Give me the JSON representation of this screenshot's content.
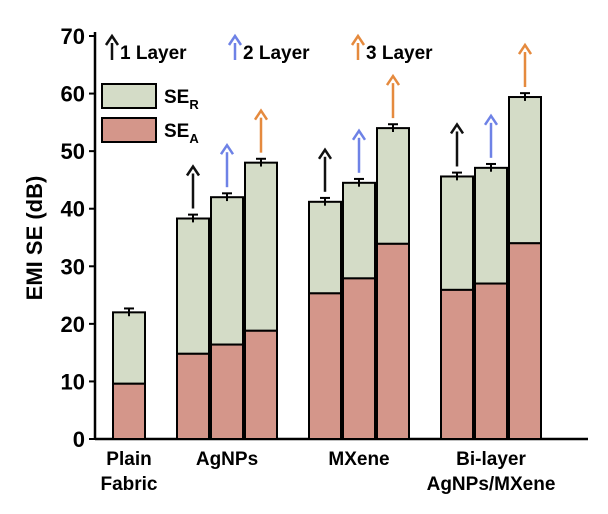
{
  "chart_data": {
    "type": "bar",
    "stacked": true,
    "title": "",
    "xlabel": "",
    "ylabel": "EMI SE (dB)",
    "ylim": [
      0,
      70
    ],
    "yticks": [
      0,
      10,
      20,
      30,
      40,
      50,
      60,
      70
    ],
    "legend_position": "top-left",
    "groups": [
      {
        "label_line1": "Plain",
        "label_line2": "Fabric",
        "bars": [
          {
            "name": "Plain Fabric",
            "layer": 0,
            "se_a": 9.6,
            "se_total": 22.0,
            "error": 0.5
          }
        ]
      },
      {
        "label_line1": "AgNPs",
        "label_line2": "",
        "bars": [
          {
            "name": "AgNPs 1 layer",
            "layer": 1,
            "se_a": 14.8,
            "se_total": 38.3,
            "error": 0.5
          },
          {
            "name": "AgNPs 2 layers",
            "layer": 2,
            "se_a": 16.4,
            "se_total": 42.0,
            "error": 0.5
          },
          {
            "name": "AgNPs 3 layers",
            "layer": 3,
            "se_a": 18.8,
            "se_total": 48.0,
            "error": 0.5
          }
        ]
      },
      {
        "label_line1": "MXene",
        "label_line2": "",
        "bars": [
          {
            "name": "MXene 1 layer",
            "layer": 1,
            "se_a": 25.3,
            "se_total": 41.2,
            "error": 0.5
          },
          {
            "name": "MXene 2 layers",
            "layer": 2,
            "se_a": 27.9,
            "se_total": 44.5,
            "error": 0.5
          },
          {
            "name": "MXene 3 layers",
            "layer": 3,
            "se_a": 33.9,
            "se_total": 54.0,
            "error": 0.5
          }
        ]
      },
      {
        "label_line1": "Bi-layer",
        "label_line2": "AgNPs/MXene",
        "bars": [
          {
            "name": "Bi-layer 1 layer",
            "layer": 1,
            "se_a": 25.9,
            "se_total": 45.6,
            "error": 0.5
          },
          {
            "name": "Bi-layer 2 layers",
            "layer": 2,
            "se_a": 27.0,
            "se_total": 47.1,
            "error": 0.5
          },
          {
            "name": "Bi-layer 3 layers",
            "layer": 3,
            "se_a": 34.0,
            "se_total": 59.4,
            "error": 0.5
          }
        ]
      }
    ],
    "series": [
      {
        "name": "SE",
        "subscript": "R",
        "color": "#d4dcc7"
      },
      {
        "name": "SE",
        "subscript": "A",
        "color": "#d4968a"
      }
    ],
    "arrow_legend": [
      {
        "label": "1 Layer",
        "color": "#111111"
      },
      {
        "label": "2 Layer",
        "color": "#6e82e6"
      },
      {
        "label": "3 Layer",
        "color": "#e58a3e"
      }
    ]
  }
}
